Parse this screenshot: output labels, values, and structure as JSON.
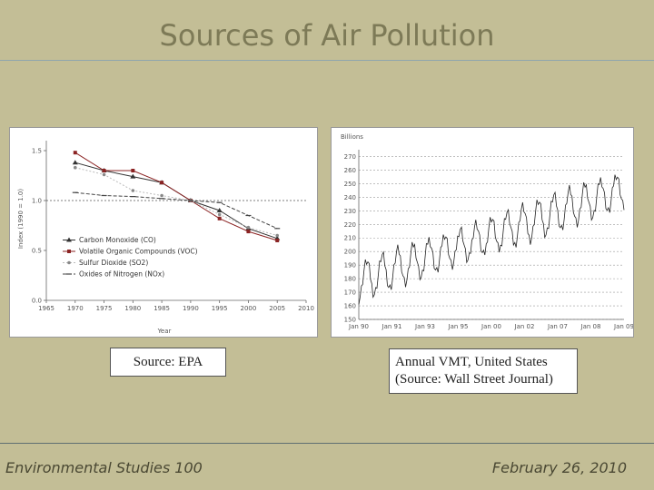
{
  "title": "Sources of Air Pollution",
  "footer": {
    "course": "Environmental Studies 100",
    "date": "February 26, 2010"
  },
  "left_caption": "Source: EPA",
  "right_caption_lines": [
    "Annual VMT, United States",
    "(Source: Wall Street Journal)"
  ],
  "colors": {
    "background": "#c3be96",
    "title": "#7d7a57",
    "co": "#333333",
    "voc": "#8b2323",
    "so2": "#bbbbbb",
    "nox": "#444444"
  },
  "chart_data": [
    {
      "type": "line",
      "source": "EPA",
      "xlabel": "Year",
      "ylabel": "Index (1990 = 1.0)",
      "xlim": [
        1965,
        2010
      ],
      "ylim": [
        0.0,
        1.6
      ],
      "x_ticks": [
        1965,
        1970,
        1975,
        1980,
        1985,
        1990,
        1995,
        2000,
        2005,
        2010
      ],
      "y_ticks": [
        "0.0",
        "0.5",
        "1.0",
        "1.5"
      ],
      "reference_line": 1.0,
      "legend_position": "lower-left",
      "series": [
        {
          "name": "Carbon Monoxide (CO)",
          "marker": "triangle",
          "x": [
            1970,
            1975,
            1980,
            1985,
            1990,
            1995,
            2000,
            2005
          ],
          "y": [
            1.38,
            1.3,
            1.24,
            1.18,
            1.0,
            0.9,
            0.72,
            0.62
          ]
        },
        {
          "name": "Volatile Organic Compounds (VOC)",
          "marker": "square",
          "x": [
            1970,
            1975,
            1980,
            1985,
            1990,
            1995,
            2000,
            2005
          ],
          "y": [
            1.48,
            1.3,
            1.3,
            1.18,
            1.0,
            0.82,
            0.69,
            0.6
          ]
        },
        {
          "name": "Sulfur Dioxide (SO2)",
          "marker": "dot",
          "x": [
            1970,
            1975,
            1980,
            1985,
            1990,
            1995,
            2000,
            2005
          ],
          "y": [
            1.33,
            1.26,
            1.1,
            1.05,
            1.0,
            0.86,
            0.73,
            0.65
          ]
        },
        {
          "name": "Oxides of Nitrogen (NOx)",
          "marker": "dash",
          "x": [
            1970,
            1975,
            1980,
            1985,
            1990,
            1995,
            2000,
            2005
          ],
          "y": [
            1.08,
            1.05,
            1.04,
            1.02,
            1.0,
            0.98,
            0.85,
            0.72
          ]
        }
      ]
    },
    {
      "type": "line",
      "source": "Wall Street Journal",
      "title": "Annual VMT, United States",
      "ylabel": "Billions",
      "ylim": [
        150,
        275
      ],
      "y_ticks": [
        150,
        160,
        170,
        180,
        190,
        200,
        210,
        220,
        230,
        240,
        250,
        260,
        270
      ],
      "x_ticks": [
        "Jan 90",
        "Jan 91",
        "Jan 93",
        "Jan 95",
        "Jan 00",
        "Jan 02",
        "Jan 07",
        "Jan 08",
        "Jan 09"
      ],
      "grid": "horizontal dashed",
      "series": [
        {
          "name": "Annual VMT",
          "trend_start": 178,
          "trend_end": 246,
          "seasonal_amplitude": 13,
          "years": 17
        }
      ]
    }
  ]
}
